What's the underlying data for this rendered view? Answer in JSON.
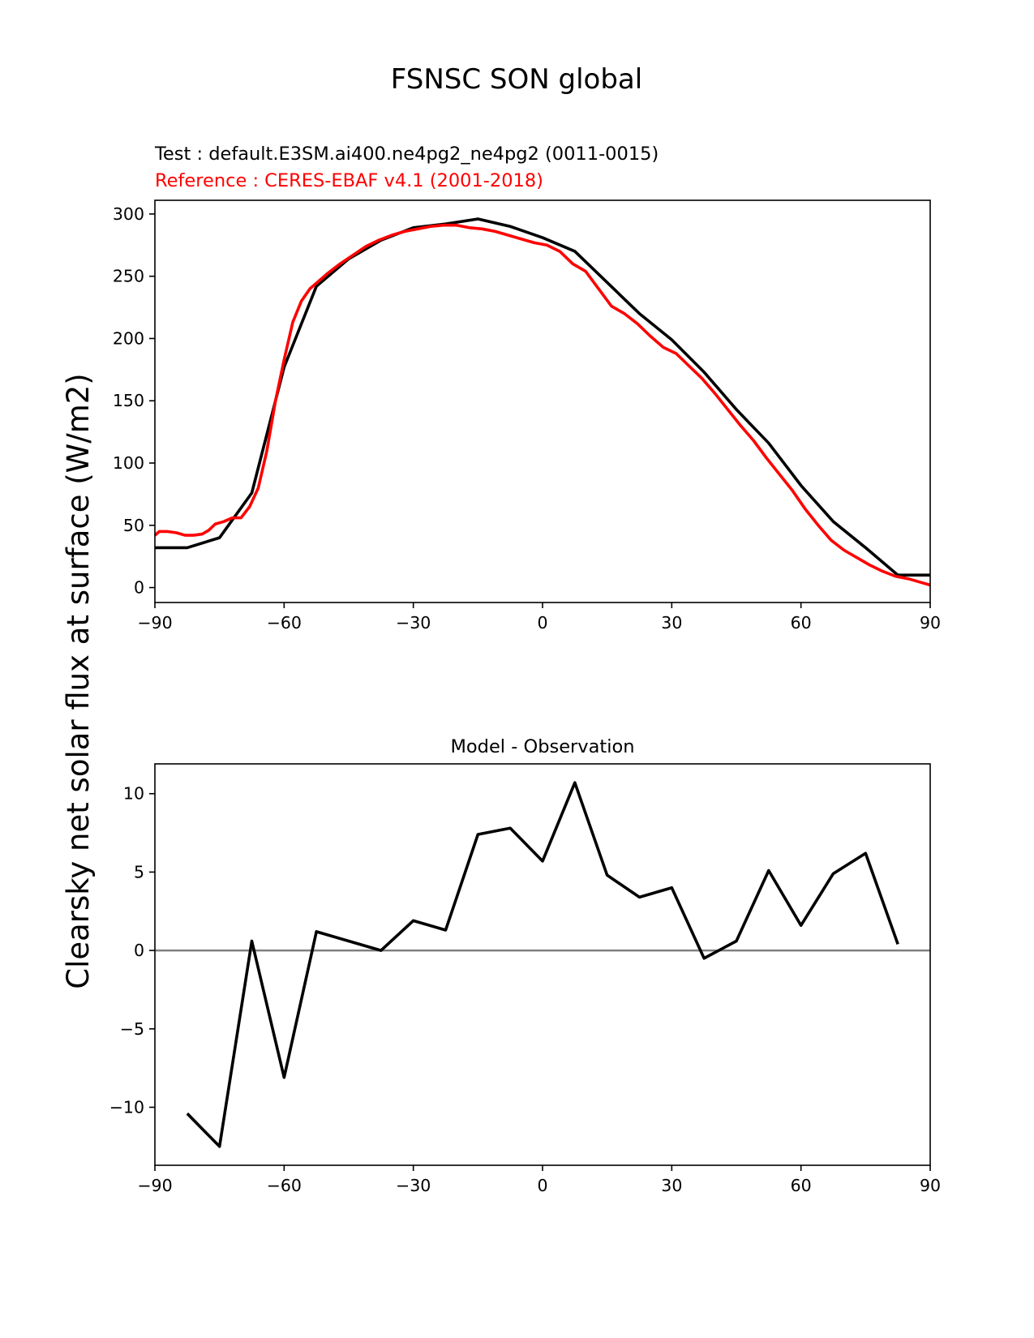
{
  "figure": {
    "suptitle": "FSNSC SON global",
    "ylabel": "Clearsky net solar flux at surface (W/m2)",
    "colors": {
      "test": "#000000",
      "reference": "#ff0000",
      "zero_line": "#808080"
    }
  },
  "chart_data": [
    {
      "type": "line",
      "test_label": "Test : default.E3SM.ai400.ne4pg2_ne4pg2 (0011-0015)",
      "reference_label": "Reference : CERES-EBAF v4.1 (2001-2018)",
      "xlim": [
        -90,
        90
      ],
      "ylim": [
        -12,
        311
      ],
      "xticks": [
        -90,
        -60,
        -30,
        0,
        30,
        60,
        90
      ],
      "xtick_labels": [
        "−90",
        "−60",
        "−30",
        "0",
        "30",
        "60",
        "90"
      ],
      "yticks": [
        0,
        50,
        100,
        150,
        200,
        250,
        300
      ],
      "ytick_labels": [
        "0",
        "50",
        "100",
        "150",
        "200",
        "250",
        "300"
      ],
      "grid": false,
      "series": [
        {
          "key": "test",
          "color": "#000000",
          "x": [
            -90,
            -82.5,
            -75,
            -67.5,
            -60,
            -52.5,
            -45,
            -37.5,
            -30,
            -22.5,
            -15,
            -7.5,
            0,
            7.5,
            15,
            22.5,
            30,
            37.5,
            45,
            52.5,
            60,
            67.5,
            75,
            82.5,
            90
          ],
          "y": [
            32,
            32,
            40,
            76,
            177,
            242,
            264,
            279,
            289,
            292,
            296,
            290,
            281,
            270,
            245,
            220,
            199,
            173,
            143,
            116,
            82,
            53,
            32,
            10,
            10
          ]
        },
        {
          "key": "reference",
          "color": "#ff0000",
          "x": [
            -90,
            -89,
            -87,
            -85,
            -83,
            -81,
            -79,
            -77.5,
            -76,
            -74,
            -72,
            -70,
            -68,
            -66,
            -64,
            -62,
            -60,
            -58,
            -56,
            -54,
            -52,
            -50,
            -47,
            -44,
            -41,
            -38,
            -35,
            -32,
            -29,
            -26,
            -23,
            -20,
            -17,
            -14,
            -11,
            -8,
            -5,
            -2,
            1,
            4,
            7,
            10,
            13,
            16,
            19,
            22,
            25,
            28,
            31,
            34,
            37,
            40,
            43,
            46,
            49,
            52,
            55,
            58,
            61,
            64,
            67,
            70,
            73,
            76,
            79,
            82,
            85,
            88,
            90
          ],
          "y": [
            42,
            45,
            45,
            44,
            42,
            42,
            43,
            46,
            51,
            53,
            56,
            56,
            65,
            80,
            110,
            150,
            183,
            213,
            230,
            240,
            246,
            252,
            260,
            267,
            274,
            279,
            283,
            286,
            288,
            290,
            291,
            291,
            289,
            288,
            286,
            283,
            280,
            277,
            275,
            270,
            260,
            254,
            240,
            226,
            220,
            212,
            202,
            193,
            188,
            178,
            168,
            156,
            143,
            130,
            118,
            104,
            91,
            78,
            63,
            50,
            38,
            30,
            24,
            18,
            13,
            9,
            7,
            4,
            2
          ]
        }
      ]
    },
    {
      "type": "line",
      "title": "Model - Observation",
      "xlim": [
        -90,
        90
      ],
      "ylim": [
        -13.7,
        11.9
      ],
      "xticks": [
        -90,
        -60,
        -30,
        0,
        30,
        60,
        90
      ],
      "xtick_labels": [
        "−90",
        "−60",
        "−30",
        "0",
        "30",
        "60",
        "90"
      ],
      "yticks": [
        -10,
        -5,
        0,
        5,
        10
      ],
      "ytick_labels": [
        "−10",
        "−5",
        "0",
        "5",
        "10"
      ],
      "grid": false,
      "zero_line": true,
      "series": [
        {
          "key": "difference",
          "color": "#000000",
          "x": [
            -82.5,
            -75,
            -67.5,
            -60,
            -52.5,
            -45,
            -37.5,
            -30,
            -22.5,
            -15,
            -7.5,
            0,
            7.5,
            15,
            22.5,
            30,
            37.5,
            45,
            52.5,
            60,
            67.5,
            75,
            82.5
          ],
          "y": [
            -10.4,
            -12.5,
            0.6,
            -8.1,
            1.2,
            0.6,
            0.0,
            1.9,
            1.3,
            7.4,
            7.8,
            5.7,
            10.7,
            4.8,
            3.4,
            4.0,
            -0.5,
            0.6,
            5.1,
            1.6,
            4.9,
            6.2,
            0.4
          ]
        }
      ]
    }
  ]
}
